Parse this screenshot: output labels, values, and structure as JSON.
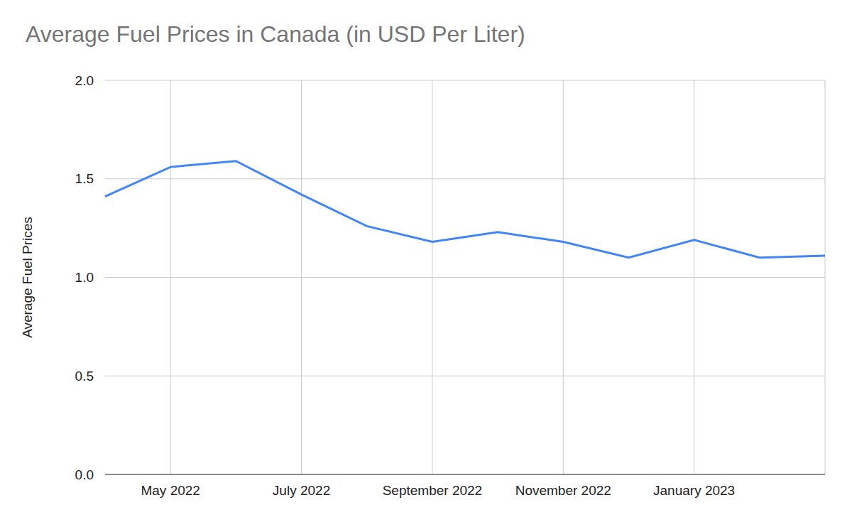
{
  "chart_data": {
    "type": "line",
    "title": "Average Fuel Prices in Canada (in USD Per Liter)",
    "y_label": "Average Fuel Prices",
    "categories": [
      null,
      "May 2022",
      null,
      "July 2022",
      null,
      "September 2022",
      null,
      "November 2022",
      null,
      "January 2023",
      null,
      null
    ],
    "values": [
      1.41,
      1.56,
      1.59,
      1.42,
      1.26,
      1.18,
      1.23,
      1.18,
      1.1,
      1.19,
      1.1,
      1.11
    ],
    "color": "#4285f4",
    "ylim": [
      0,
      2
    ],
    "yticks": [
      {
        "value": 0,
        "label": "0.0"
      },
      0.5,
      {
        "value": 1,
        "label": "1.0"
      },
      1.5,
      {
        "value": 2,
        "label": "2.0"
      }
    ],
    "grid": true
  }
}
